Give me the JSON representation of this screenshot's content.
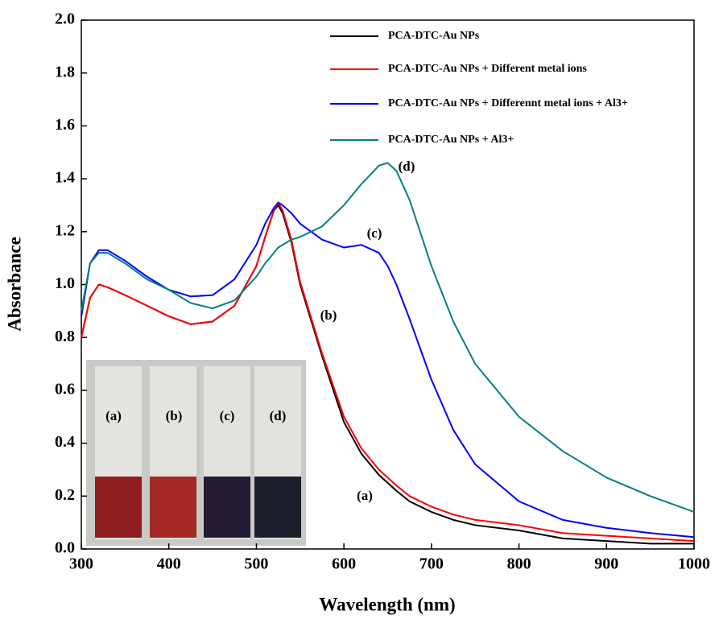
{
  "chart_data": {
    "type": "line",
    "x_label": "Wavelength (nm)",
    "y_label": "Absorbance",
    "xlim": [
      300,
      1000
    ],
    "ylim": [
      0,
      2.0
    ],
    "xticks": [
      300,
      400,
      500,
      600,
      700,
      800,
      900,
      1000
    ],
    "yticks": [
      {
        "value": 0,
        "label": "0.0"
      },
      0.2,
      0.4,
      0.6,
      0.8,
      {
        "value": 1,
        "label": "1.0"
      },
      1.2,
      1.4,
      1.6,
      1.8,
      {
        "value": 2,
        "label": "2.0"
      }
    ],
    "legend": "top-right",
    "x": [
      300,
      310,
      320,
      330,
      350,
      375,
      400,
      425,
      450,
      475,
      500,
      510,
      520,
      525,
      530,
      540,
      550,
      575,
      600,
      620,
      640,
      650,
      660,
      675,
      700,
      725,
      750,
      800,
      850,
      900,
      950,
      1000
    ],
    "series": [
      {
        "name": "PCA-DTC-Au NPs",
        "color": "#000000",
        "values": [
          0.8,
          0.95,
          1.0,
          0.99,
          0.96,
          0.92,
          0.88,
          0.85,
          0.86,
          0.92,
          1.07,
          1.18,
          1.28,
          1.3,
          1.27,
          1.16,
          1.0,
          0.73,
          0.48,
          0.36,
          0.28,
          0.25,
          0.22,
          0.18,
          0.14,
          0.11,
          0.09,
          0.07,
          0.04,
          0.03,
          0.02,
          0.02
        ]
      },
      {
        "name": "PCA-DTC-Au NPs + Different metal ions",
        "color": "#ff0000",
        "values": [
          0.8,
          0.95,
          1.0,
          0.99,
          0.96,
          0.92,
          0.88,
          0.85,
          0.86,
          0.92,
          1.07,
          1.18,
          1.28,
          1.31,
          1.28,
          1.17,
          1.01,
          0.74,
          0.5,
          0.38,
          0.3,
          0.27,
          0.24,
          0.2,
          0.16,
          0.13,
          0.11,
          0.09,
          0.06,
          0.05,
          0.04,
          0.03
        ]
      },
      {
        "name": "PCA-DTC-Au NPs + Differennt metal ions + Al3+",
        "color": "#0000ff",
        "values": [
          0.88,
          1.08,
          1.13,
          1.13,
          1.09,
          1.03,
          0.98,
          0.955,
          0.96,
          1.02,
          1.15,
          1.23,
          1.29,
          1.31,
          1.3,
          1.27,
          1.23,
          1.17,
          1.14,
          1.15,
          1.12,
          1.07,
          1.0,
          0.87,
          0.64,
          0.45,
          0.32,
          0.18,
          0.11,
          0.08,
          0.06,
          0.045
        ]
      },
      {
        "name": "PCA-DTC-Au NPs + Al3+",
        "color": "#008080",
        "values": [
          0.9,
          1.08,
          1.12,
          1.12,
          1.08,
          1.02,
          0.98,
          0.93,
          0.91,
          0.94,
          1.03,
          1.08,
          1.12,
          1.14,
          1.15,
          1.17,
          1.18,
          1.22,
          1.3,
          1.38,
          1.45,
          1.46,
          1.43,
          1.32,
          1.07,
          0.86,
          0.7,
          0.5,
          0.37,
          0.27,
          0.2,
          0.14
        ]
      }
    ],
    "annotations": [
      "(a)",
      "(b)",
      "(c)",
      "(d)"
    ],
    "inset_labels": [
      "(a)",
      "(b)",
      "(c)",
      "(d)"
    ]
  }
}
